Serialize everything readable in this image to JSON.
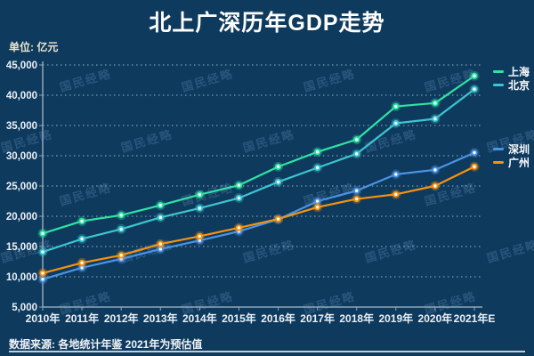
{
  "title": "北上广深历年GDP走势",
  "unit_label": "单位: 亿元",
  "watermark": {
    "text": "国民经略"
  },
  "footer": {
    "source": "数据来源: 各地统计年鉴  2021年为预估值"
  },
  "colors": {
    "background": "#0e3a5e",
    "title": "#ffffff",
    "unit_label": "#ece5d0",
    "axis_text": "#eaf0f6",
    "grid": "#cfd8e0",
    "axis_line": "#8fa6b8",
    "legend_text": "#ffffff",
    "footer_text": "#f0f3f6",
    "footer_line": "#c7ccd2",
    "watermark": "#8db4dd",
    "shanghai": "#2fe3a4",
    "beijing": "#3cc6d0",
    "shenzhen": "#4b93e4",
    "guangzhou": "#f6920f"
  },
  "chart_data": {
    "type": "line",
    "title": "北上广深历年GDP走势",
    "unit": "亿元",
    "categories": [
      "2010年",
      "2011年",
      "2012年",
      "2013年",
      "2014年",
      "2015年",
      "2016年",
      "2017年",
      "2018年",
      "2019年",
      "2020年",
      "2021年E"
    ],
    "series": [
      {
        "name": "上海",
        "color": "#2fe3a4",
        "values": [
          17166,
          19196,
          20182,
          21818,
          23568,
          25123,
          28179,
          30633,
          32680,
          38155,
          38701,
          43200
        ]
      },
      {
        "name": "北京",
        "color": "#3cc6d0",
        "values": [
          14114,
          16252,
          17879,
          19801,
          21331,
          23015,
          25669,
          28015,
          30320,
          35371,
          36103,
          41000
        ]
      },
      {
        "name": "深圳",
        "color": "#4b93e4",
        "values": [
          9582,
          11502,
          12950,
          14572,
          16002,
          17503,
          19493,
          22490,
          24222,
          26927,
          27670,
          30500
        ]
      },
      {
        "name": "广州",
        "color": "#f6920f",
        "values": [
          10604,
          12303,
          13551,
          15420,
          16707,
          18100,
          19547,
          21503,
          22859,
          23629,
          25019,
          28200
        ]
      }
    ],
    "ylim": [
      5000,
      45000
    ],
    "ytick_step": 5000,
    "grid": true,
    "gridline_style": "dotted",
    "legend_position": "right"
  }
}
